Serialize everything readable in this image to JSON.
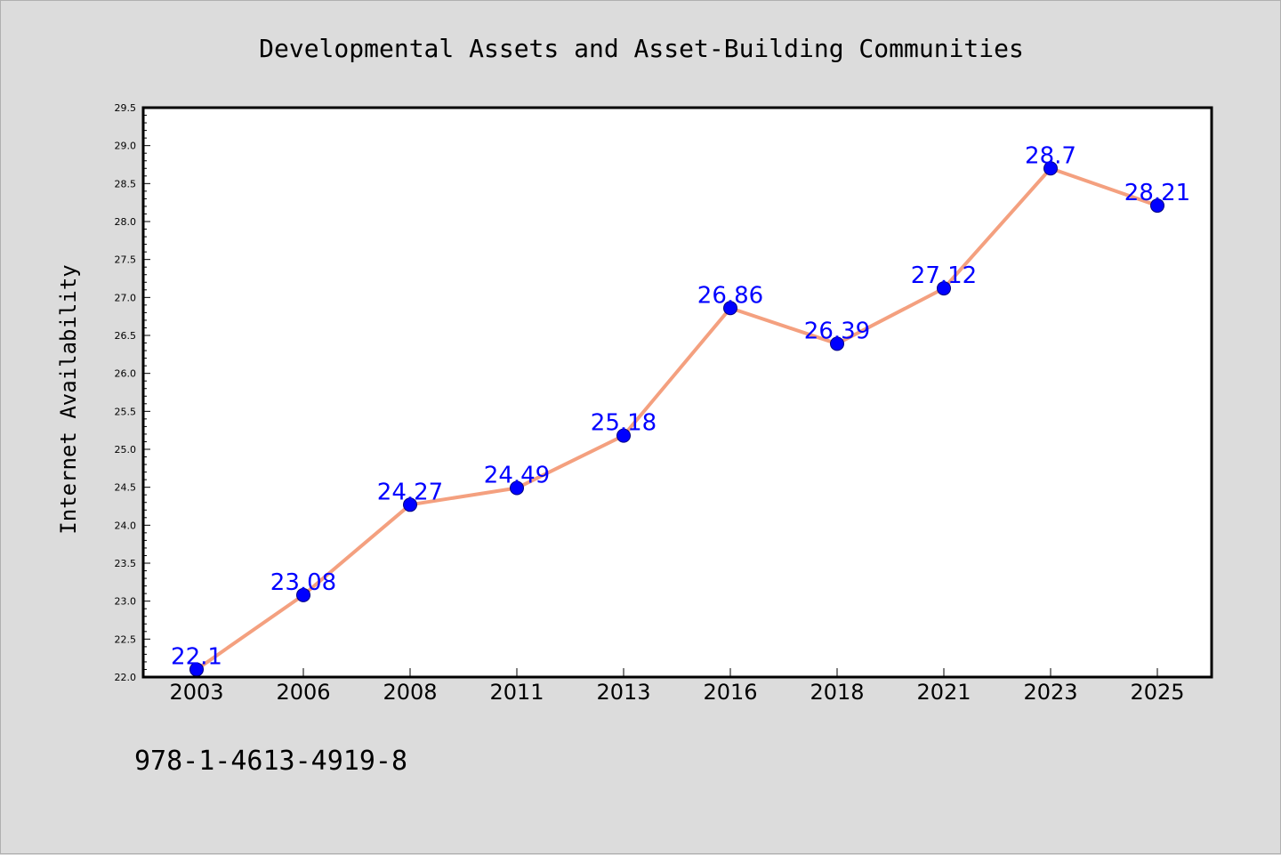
{
  "chart_data": {
    "type": "line",
    "title": "Developmental Assets and Asset-Building Communities",
    "xlabel": "",
    "ylabel": "Internet Availability",
    "categories": [
      "2003",
      "2006",
      "2008",
      "2011",
      "2013",
      "2016",
      "2018",
      "2021",
      "2023",
      "2025"
    ],
    "series": [
      {
        "values": [
          22.1,
          23.08,
          24.27,
          24.49,
          25.18,
          26.86,
          26.39,
          27.12,
          28.7,
          28.21
        ],
        "labels": [
          "22.1",
          "23.08",
          "24.27",
          "24.49",
          "25.18",
          "26.86",
          "26.39",
          "27.12",
          "28.7",
          "28.21"
        ],
        "line_color": "#f4a07f",
        "marker_color": "#0000ff"
      }
    ],
    "ylim": [
      22.0,
      29.5
    ],
    "yticks": [
      "22.0",
      "22.5",
      "23.0",
      "23.5",
      "24.0",
      "24.5",
      "25.0",
      "25.5",
      "26.0",
      "26.5",
      "27.0",
      "27.5",
      "28.0",
      "28.5",
      "29.0",
      "29.5"
    ],
    "grid": false,
    "legend": "none"
  },
  "footer_text": "978-1-4613-4919-8",
  "colors": {
    "background": "#dcdcdc",
    "plot_background": "#ffffff",
    "line": "#f4a07f",
    "marker": "#0000ff",
    "data_label": "#0000ff"
  }
}
